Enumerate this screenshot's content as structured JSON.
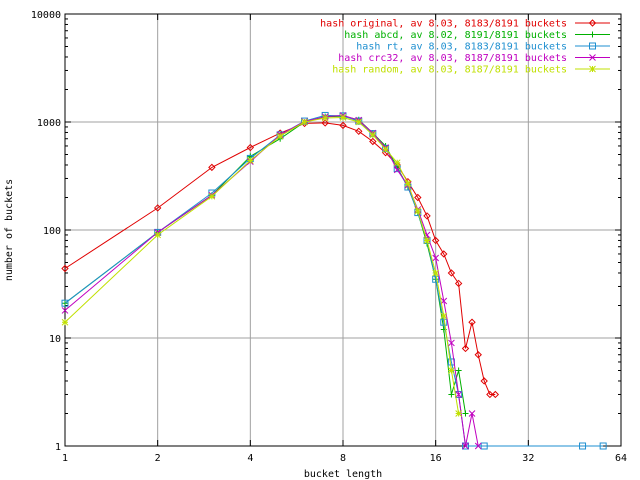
{
  "chart_data": {
    "type": "line",
    "title": "",
    "xlabel": "bucket length",
    "ylabel": "number of buckets",
    "xscale": "log2",
    "yscale": "log10",
    "xlim": [
      1,
      64
    ],
    "ylim": [
      1,
      10000
    ],
    "x_ticks": [
      1,
      2,
      4,
      8,
      16,
      32,
      64
    ],
    "x_tick_labels": [
      "1",
      "2",
      "4",
      "8",
      "16",
      "32",
      "64"
    ],
    "y_ticks": [
      1,
      10,
      100,
      1000,
      10000
    ],
    "y_tick_labels": [
      "1",
      "10",
      "100",
      "1000",
      "10000"
    ],
    "grid": true,
    "legend_position": "top-right",
    "series": [
      {
        "name": "hash original, av 8.03, 8183/8191 buckets",
        "color": "#e00000",
        "marker": "diamond",
        "points": [
          [
            1,
            44
          ],
          [
            2,
            160
          ],
          [
            3,
            380
          ],
          [
            4,
            580
          ],
          [
            5,
            790
          ],
          [
            6,
            970
          ],
          [
            7,
            980
          ],
          [
            8,
            930
          ],
          [
            9,
            820
          ],
          [
            10,
            660
          ],
          [
            11,
            520
          ],
          [
            12,
            400
          ],
          [
            13,
            280
          ],
          [
            14,
            200
          ],
          [
            15,
            135
          ],
          [
            16,
            80
          ],
          [
            17,
            60
          ],
          [
            18,
            40
          ],
          [
            19,
            32
          ],
          [
            20,
            8
          ],
          [
            21,
            14
          ],
          [
            22,
            7
          ],
          [
            23,
            4
          ],
          [
            24,
            3
          ],
          [
            25,
            3
          ]
        ]
      },
      {
        "name": "hash abcd, av 8.02, 8191/8191 buckets",
        "color": "#00b000",
        "marker": "plus",
        "points": [
          [
            1,
            21
          ],
          [
            2,
            95
          ],
          [
            3,
            210
          ],
          [
            4,
            480
          ],
          [
            5,
            700
          ],
          [
            6,
            1000
          ],
          [
            7,
            1120
          ],
          [
            8,
            1130
          ],
          [
            9,
            1050
          ],
          [
            10,
            790
          ],
          [
            11,
            600
          ],
          [
            12,
            380
          ],
          [
            13,
            250
          ],
          [
            14,
            145
          ],
          [
            15,
            75
          ],
          [
            16,
            35
          ],
          [
            17,
            12
          ],
          [
            18,
            3
          ],
          [
            19,
            5
          ],
          [
            20,
            2
          ]
        ]
      },
      {
        "name": "hash rt, av 8.03, 8183/8191 buckets",
        "color": "#1e8fd0",
        "marker": "square",
        "points": [
          [
            1,
            21
          ],
          [
            2,
            95
          ],
          [
            3,
            220
          ],
          [
            4,
            460
          ],
          [
            5,
            760
          ],
          [
            6,
            1020
          ],
          [
            7,
            1150
          ],
          [
            8,
            1140
          ],
          [
            9,
            1020
          ],
          [
            10,
            780
          ],
          [
            11,
            570
          ],
          [
            12,
            370
          ],
          [
            13,
            250
          ],
          [
            14,
            145
          ],
          [
            15,
            80
          ],
          [
            16,
            35
          ],
          [
            17,
            14
          ],
          [
            18,
            6
          ],
          [
            19,
            3
          ],
          [
            20,
            1
          ],
          [
            23,
            1
          ],
          [
            48,
            1
          ],
          [
            56,
            1
          ]
        ]
      },
      {
        "name": "hash crc32, av 8.03, 8187/8191 buckets",
        "color": "#c000c0",
        "marker": "cross",
        "points": [
          [
            1,
            18
          ],
          [
            2,
            95
          ],
          [
            3,
            210
          ],
          [
            4,
            430
          ],
          [
            5,
            760
          ],
          [
            6,
            1010
          ],
          [
            7,
            1120
          ],
          [
            8,
            1150
          ],
          [
            9,
            1040
          ],
          [
            10,
            790
          ],
          [
            11,
            580
          ],
          [
            12,
            360
          ],
          [
            13,
            260
          ],
          [
            14,
            155
          ],
          [
            15,
            90
          ],
          [
            16,
            55
          ],
          [
            17,
            22
          ],
          [
            18,
            9
          ],
          [
            19,
            3
          ],
          [
            20,
            1
          ],
          [
            21,
            2
          ],
          [
            22,
            1
          ]
        ]
      },
      {
        "name": "hash random, av 8.03, 8187/8191 buckets",
        "color": "#c0e000",
        "marker": "star",
        "points": [
          [
            1,
            14
          ],
          [
            2,
            90
          ],
          [
            3,
            205
          ],
          [
            4,
            440
          ],
          [
            5,
            740
          ],
          [
            6,
            1000
          ],
          [
            7,
            1090
          ],
          [
            8,
            1100
          ],
          [
            9,
            1000
          ],
          [
            10,
            760
          ],
          [
            11,
            560
          ],
          [
            12,
            420
          ],
          [
            13,
            270
          ],
          [
            14,
            150
          ],
          [
            15,
            80
          ],
          [
            16,
            40
          ],
          [
            17,
            16
          ],
          [
            18,
            5
          ],
          [
            19,
            2
          ]
        ]
      }
    ]
  }
}
